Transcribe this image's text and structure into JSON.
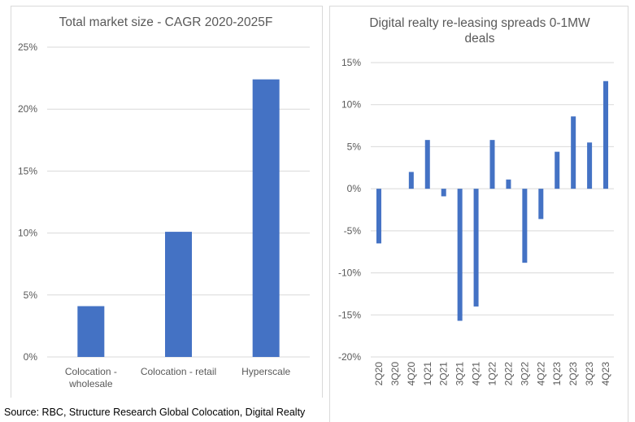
{
  "chart_data": [
    {
      "type": "bar",
      "title": "Total market size - CAGR 2020-2025F",
      "categories": [
        "Colocation - wholesale",
        "Colocation - retail",
        "Hyperscale"
      ],
      "category_lines": [
        [
          "Colocation -",
          "wholesale"
        ],
        [
          "Colocation - retail"
        ],
        [
          "Hyperscale"
        ]
      ],
      "values": [
        4.1,
        10.1,
        22.4
      ],
      "unit": "%",
      "ylim": [
        0,
        25
      ],
      "yticks": [
        "0%",
        "5%",
        "10%",
        "15%",
        "20%",
        "25%"
      ],
      "grid": true,
      "color": "#4472c4"
    },
    {
      "type": "bar",
      "title": "Digital realty re-leasing spreads 0-1MW deals",
      "categories": [
        "2Q20",
        "3Q20",
        "4Q20",
        "1Q21",
        "2Q21",
        "3Q21",
        "4Q21",
        "1Q22",
        "2Q22",
        "3Q22",
        "4Q22",
        "1Q23",
        "2Q23",
        "3Q23",
        "4Q23"
      ],
      "values": [
        -6.5,
        0,
        2.0,
        5.8,
        -0.9,
        -15.7,
        -14.0,
        5.8,
        1.1,
        -8.8,
        -3.6,
        4.4,
        8.6,
        5.5,
        12.8
      ],
      "unit": "%",
      "ylim": [
        -20,
        15
      ],
      "yticks": [
        "-20%",
        "-15%",
        "-10%",
        "-5%",
        "0%",
        "5%",
        "10%",
        "15%"
      ],
      "grid": true,
      "color": "#4472c4"
    }
  ],
  "source": "Source: RBC, Structure Research Global Colocation, Digital Realty"
}
